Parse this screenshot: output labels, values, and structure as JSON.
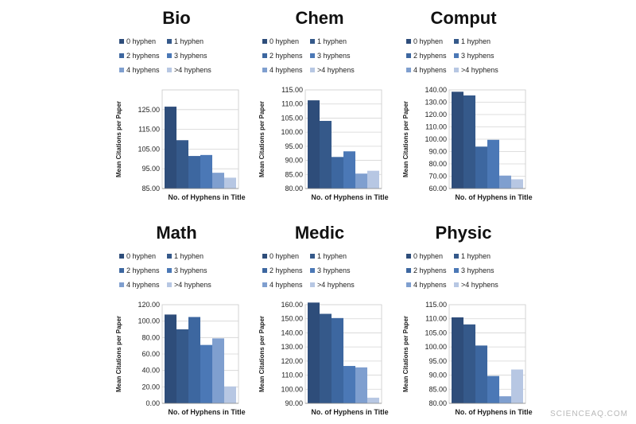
{
  "colors": [
    "#2e4d7a",
    "#35598a",
    "#3d67a0",
    "#4b78b6",
    "#7f9fcf",
    "#b7c7e3"
  ],
  "legend_labels": [
    "0 hyphen",
    "1 hyphen",
    "2 hyphens",
    "3 hyphens",
    "4 hyphens",
    ">4 hyphens"
  ],
  "watermark": "SCIENCEAQ.COM",
  "chart_data": [
    {
      "type": "bar",
      "title": "Bio",
      "xlabel": "No. of Hyphens in Title",
      "ylabel": "Mean Citations per Paper",
      "categories": [
        "0 hyphen",
        "1 hyphen",
        "2 hyphens",
        "3 hyphens",
        "4 hyphens",
        ">4 hyphens"
      ],
      "values": [
        126.5,
        109.5,
        101.5,
        102,
        93,
        90.5
      ],
      "ylim": [
        85,
        135
      ],
      "yticks": [
        "85.00",
        "95.00",
        "105.00",
        "115.00",
        "125.00"
      ],
      "ytick_values": [
        85,
        95,
        105,
        115,
        125
      ]
    },
    {
      "type": "bar",
      "title": "Chem",
      "xlabel": "No. of Hyphens in Title",
      "ylabel": "Mean Citations per Paper",
      "categories": [
        "0 hyphen",
        "1 hyphen",
        "2 hyphens",
        "3 hyphens",
        "4 hyphens",
        ">4 hyphens"
      ],
      "values": [
        111.3,
        104,
        91.2,
        93.2,
        85.3,
        86.3
      ],
      "ylim": [
        80,
        115
      ],
      "yticks": [
        "80.00",
        "85.00",
        "90.00",
        "95.00",
        "100.00",
        "105.00",
        "110.00",
        "115.00"
      ],
      "ytick_values": [
        80,
        85,
        90,
        95,
        100,
        105,
        110,
        115
      ]
    },
    {
      "type": "bar",
      "title": "Comput",
      "xlabel": "No. of Hyphens in Title",
      "ylabel": "Mean Citations per Paper",
      "categories": [
        "0 hyphen",
        "1 hyphen",
        "2 hyphens",
        "3 hyphens",
        "4 hyphens",
        ">4 hyphens"
      ],
      "values": [
        138.5,
        135.5,
        94,
        99.5,
        70.5,
        67.5
      ],
      "ylim": [
        60,
        140
      ],
      "yticks": [
        "60.00",
        "70.00",
        "80.00",
        "90.00",
        "100.00",
        "110.00",
        "120.00",
        "130.00",
        "140.00"
      ],
      "ytick_values": [
        60,
        70,
        80,
        90,
        100,
        110,
        120,
        130,
        140
      ]
    },
    {
      "type": "bar",
      "title": "Math",
      "xlabel": "No. of Hyphens in Title",
      "ylabel": "Mean Citations per Paper",
      "categories": [
        "0 hyphen",
        "1 hyphen",
        "2 hyphens",
        "3 hyphens",
        "4 hyphens",
        ">4 hyphens"
      ],
      "values": [
        108,
        90,
        105,
        71,
        79,
        20.5
      ],
      "ylim": [
        0,
        120
      ],
      "yticks": [
        "0.00",
        "20.00",
        "40.00",
        "60.00",
        "80.00",
        "100.00",
        "120.00"
      ],
      "ytick_values": [
        0,
        20,
        40,
        60,
        80,
        100,
        120
      ]
    },
    {
      "type": "bar",
      "title": "Medic",
      "xlabel": "No. of Hyphens in Title",
      "ylabel": "Mean Citations per Paper",
      "categories": [
        "0 hyphen",
        "1 hyphen",
        "2 hyphens",
        "3 hyphens",
        "4 hyphens",
        ">4 hyphens"
      ],
      "values": [
        161.5,
        153.5,
        150.5,
        116.5,
        115.5,
        94
      ],
      "ylim": [
        90,
        160
      ],
      "yticks": [
        "90.00",
        "100.00",
        "110.00",
        "120.00",
        "130.00",
        "140.00",
        "150.00",
        "160.00"
      ],
      "ytick_values": [
        90,
        100,
        110,
        120,
        130,
        140,
        150,
        160
      ]
    },
    {
      "type": "bar",
      "title": "Physic",
      "xlabel": "No. of Hyphens in Title",
      "ylabel": "Mean Citations per Paper",
      "categories": [
        "0 hyphen",
        "1 hyphen",
        "2 hyphens",
        "3 hyphens",
        "4 hyphens",
        ">4 hyphens"
      ],
      "values": [
        110.5,
        108,
        100.5,
        89.7,
        82.5,
        92
      ],
      "ylim": [
        80,
        115
      ],
      "yticks": [
        "80.00",
        "85.00",
        "90.00",
        "95.00",
        "100.00",
        "105.00",
        "110.00",
        "115.00"
      ],
      "ytick_values": [
        80,
        85,
        90,
        95,
        100,
        105,
        110,
        115
      ]
    }
  ]
}
